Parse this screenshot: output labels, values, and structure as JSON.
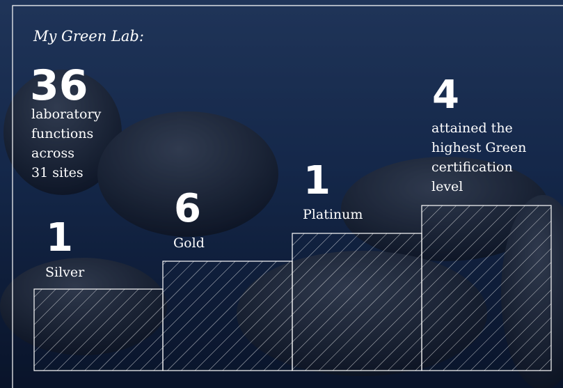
{
  "title": "My Green Lab:",
  "headline": {
    "number": "36",
    "lines": [
      "laboratory",
      "functions",
      "across",
      "31 sites"
    ]
  },
  "steps": [
    {
      "number": "1",
      "lines": [
        "Silver"
      ]
    },
    {
      "number": "6",
      "lines": [
        "Gold"
      ]
    },
    {
      "number": "1",
      "lines": [
        "Platinum"
      ]
    },
    {
      "number": "4",
      "lines": [
        "attained the",
        "highest Green",
        "certification",
        "level"
      ]
    }
  ]
}
